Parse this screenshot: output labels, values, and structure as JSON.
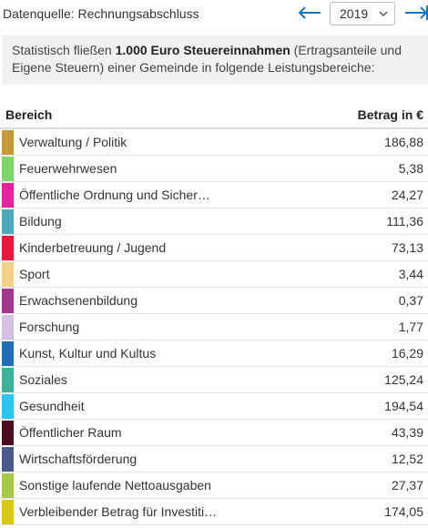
{
  "header": {
    "source": "Datenquelle: Rechnungsabschluss",
    "year": "2019"
  },
  "info": {
    "before": "Statistisch fließen ",
    "bold": "1.000 Euro Steuereinnahmen",
    "after": " (Ertragsanteile und Eigene Steuern) einer Gemeinde in folgende Leistungsbereiche:"
  },
  "table": {
    "columns": [
      "Bereich",
      "Betrag in €"
    ],
    "rows": [
      {
        "label": "Verwaltung / Politik",
        "amount": "186,88",
        "color": "#c49a3c"
      },
      {
        "label": "Feuerwehrwesen",
        "amount": "5,38",
        "color": "#7fd46a"
      },
      {
        "label": "Öffentliche Ordnung und Sicher…",
        "amount": "24,27",
        "color": "#e6239a"
      },
      {
        "label": "Bildung",
        "amount": "111,36",
        "color": "#4ea9b8"
      },
      {
        "label": "Kinderbetreuung / Jugend",
        "amount": "73,13",
        "color": "#e8193c"
      },
      {
        "label": "Sport",
        "amount": "3,44",
        "color": "#f5d08a"
      },
      {
        "label": "Erwachsenenbildung",
        "amount": "0,37",
        "color": "#a3398f"
      },
      {
        "label": "Forschung",
        "amount": "1,77",
        "color": "#d4c0e0"
      },
      {
        "label": "Kunst, Kultur und Kultus",
        "amount": "16,29",
        "color": "#1f6fb8"
      },
      {
        "label": "Soziales",
        "amount": "125,24",
        "color": "#3fb39a"
      },
      {
        "label": "Gesundheit",
        "amount": "194,54",
        "color": "#2ec4f0"
      },
      {
        "label": "Öffentlicher Raum",
        "amount": "43,39",
        "color": "#4a0f1f"
      },
      {
        "label": "Wirtschaftsförderung",
        "amount": "12,52",
        "color": "#4a5a8a"
      },
      {
        "label": "Sonstige laufende Nettoausgaben",
        "amount": "27,37",
        "color": "#a8c84a"
      },
      {
        "label": "Verbleibender Betrag für Investiti…",
        "amount": "174,05",
        "color": "#d8c81a"
      }
    ]
  }
}
